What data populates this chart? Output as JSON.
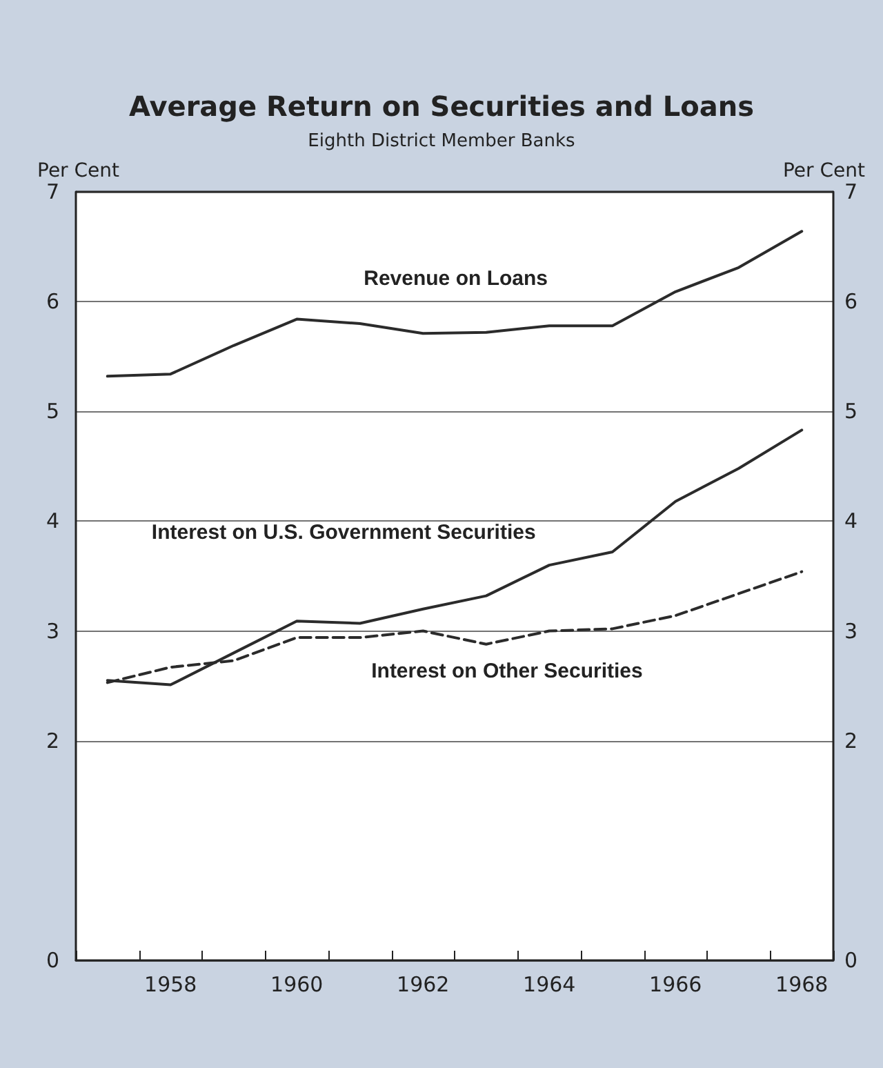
{
  "chart_data": {
    "type": "line",
    "title": "Average Return on Securities and Loans",
    "subtitle": "Eighth District Member Banks",
    "ylabel": "Per Cent",
    "y2label": "Per Cent",
    "categories": [
      null,
      "1958",
      null,
      "1960",
      null,
      "1962",
      null,
      "1964",
      null,
      "1966",
      null,
      "1968"
    ],
    "series": [
      {
        "name": "Revenue on Loans",
        "color": "#2b2b2b",
        "line_style": "solid",
        "values": [
          5.32,
          5.34,
          5.6,
          5.84,
          5.8,
          5.71,
          5.72,
          5.78,
          5.78,
          6.09,
          6.31,
          6.64
        ]
      },
      {
        "name": "Interest on U.S. Government Securities",
        "color": "#2b2b2b",
        "line_style": "solid",
        "values": [
          2.55,
          2.51,
          2.8,
          3.09,
          3.07,
          3.2,
          3.32,
          3.6,
          3.72,
          4.18,
          4.48,
          4.83
        ]
      },
      {
        "name": "Interest on Other Securities",
        "color": "#2b2b2b",
        "line_style": "dashed",
        "values": [
          2.53,
          2.67,
          2.73,
          2.94,
          2.94,
          3.0,
          2.88,
          3.0,
          3.02,
          3.14,
          3.34,
          3.54
        ]
      }
    ],
    "ylim": [
      0,
      7
    ],
    "yticks": [
      0,
      2,
      3,
      4,
      5,
      6,
      7
    ],
    "y2lim": [
      0,
      7
    ],
    "y2ticks": [
      0,
      2,
      3,
      4,
      5,
      6,
      7
    ],
    "grid": "y",
    "legend": false,
    "marker": "none"
  }
}
